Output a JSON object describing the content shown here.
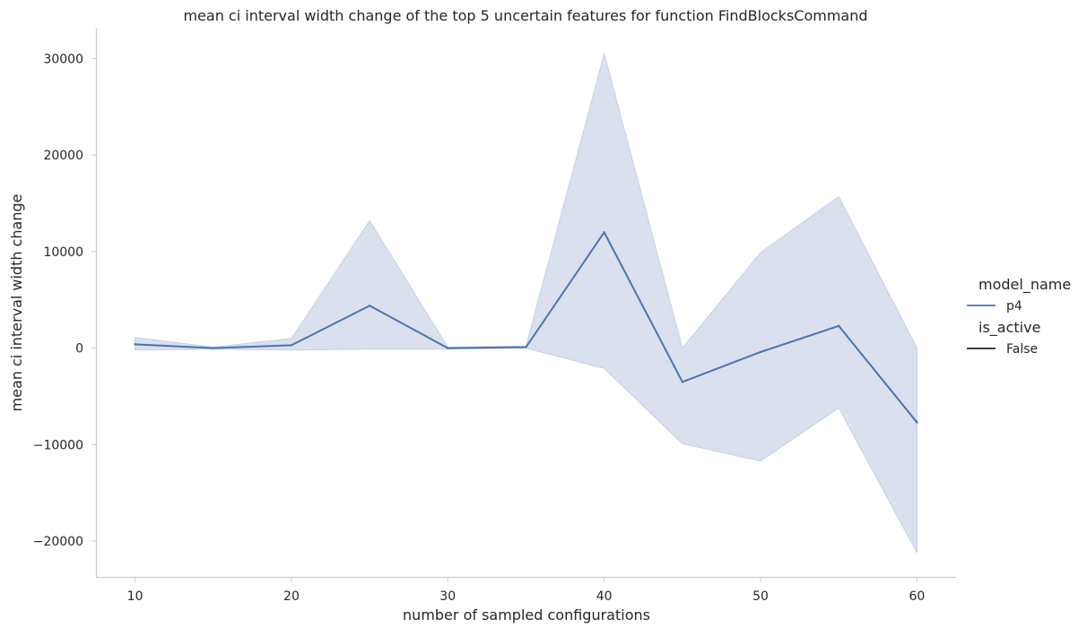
{
  "chart_data": {
    "type": "line",
    "title": "mean ci interval width change of the top 5 uncertain features for function FindBlocksCommand",
    "xlabel": "number of sampled configurations",
    "ylabel": "mean ci interval width change",
    "xlim": [
      7.5,
      62.5
    ],
    "ylim": [
      -23800,
      33200
    ],
    "x_ticks": [
      10,
      20,
      30,
      40,
      50,
      60
    ],
    "y_ticks": [
      -20000,
      -10000,
      0,
      10000,
      20000,
      30000
    ],
    "x_tick_labels": [
      "10",
      "20",
      "30",
      "40",
      "50",
      "60"
    ],
    "y_tick_labels": [
      "−20000",
      "−10000",
      "0",
      "10000",
      "20000",
      "30000"
    ],
    "grid": false,
    "legend_position": "right",
    "legend": {
      "hue_title": "model_name",
      "style_title": "is_active",
      "entries": [
        {
          "label": "p4",
          "color": "#4c72b0"
        },
        {
          "label": "False",
          "color": "#262626"
        }
      ]
    },
    "series": [
      {
        "name": "p4",
        "color": "#4c72b0",
        "band_color": "#c6cfe3",
        "x": [
          10,
          15,
          20,
          25,
          30,
          35,
          40,
          45,
          50,
          55,
          60
        ],
        "values": [
          400,
          0,
          300,
          4400,
          0,
          100,
          12000,
          -3500,
          -400,
          2300,
          -7700
        ],
        "ci_upper": [
          1100,
          100,
          1000,
          13200,
          100,
          200,
          30500,
          0,
          9900,
          15700,
          0
        ],
        "ci_lower": [
          -200,
          -100,
          -200,
          -100,
          -100,
          0,
          -2100,
          -9900,
          -11700,
          -6200,
          -21200
        ]
      }
    ]
  }
}
